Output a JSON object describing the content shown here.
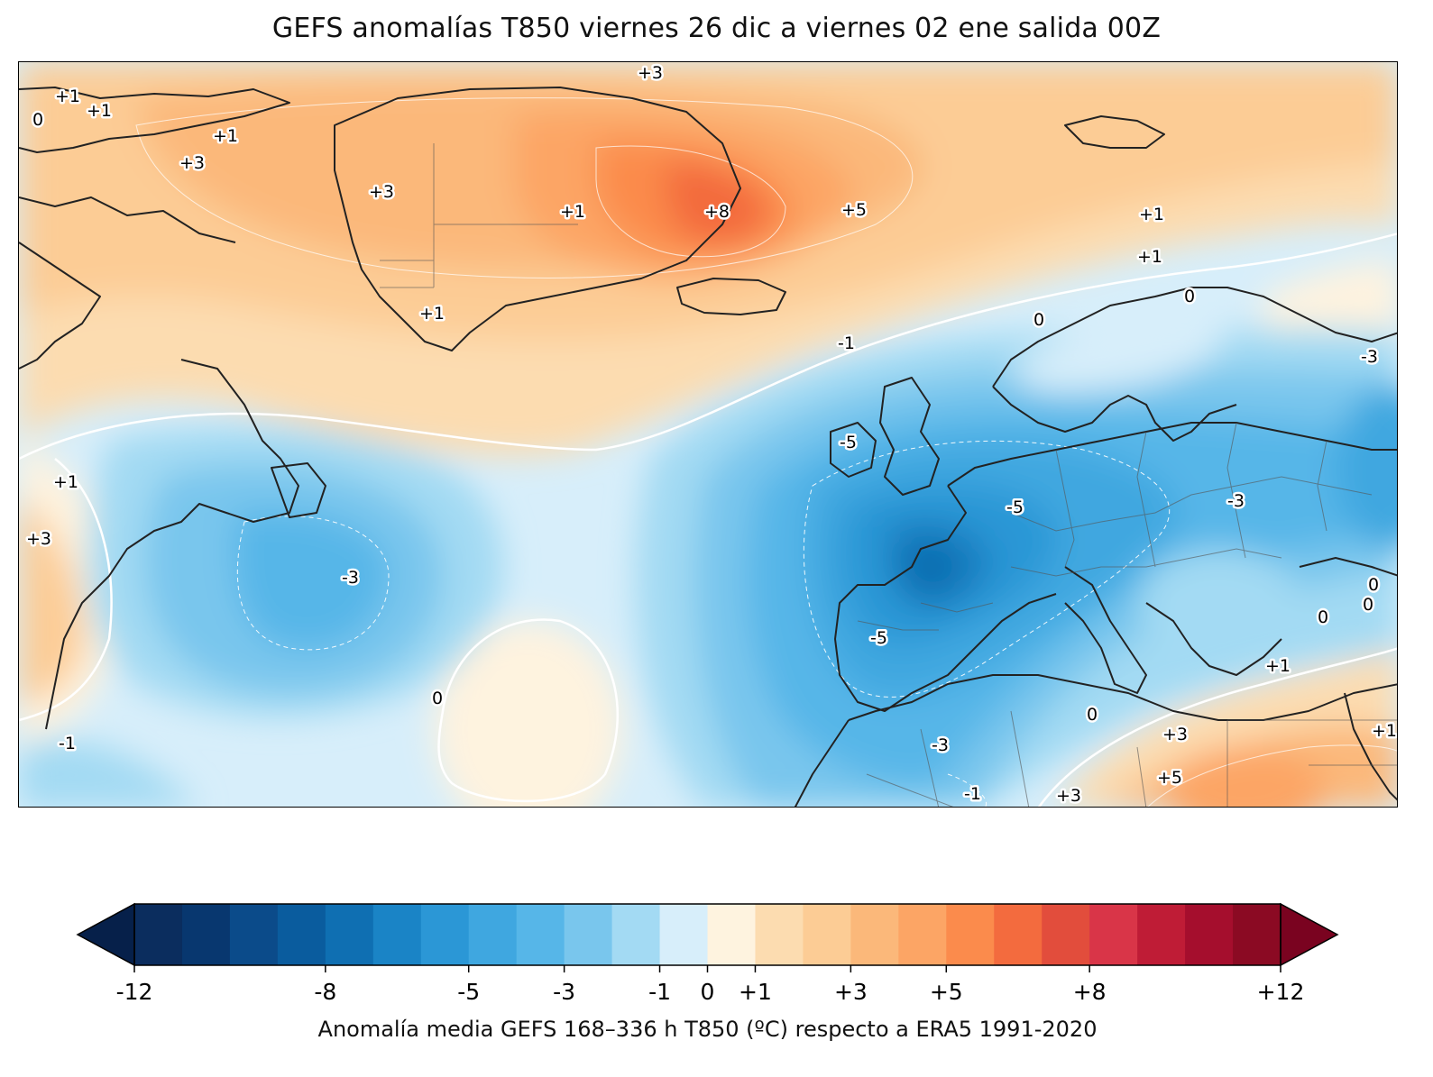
{
  "title": "GEFS anomalías T850 viernes 26 dic a viernes 02 ene salida 00Z",
  "colorbar": {
    "label": "Anomalía media GEFS 168–336 h T850 (ºC) respecto a ERA5 1991-2020",
    "tick_labels": [
      "-12",
      "-8",
      "-5",
      "-3",
      "-1",
      "0",
      "+1",
      "+3",
      "+5",
      "+8",
      "+12"
    ],
    "levels": [
      -12,
      -11,
      -10,
      -9,
      -8,
      -7,
      -6,
      -5,
      -4,
      -3,
      -2,
      -1,
      0,
      1,
      2,
      3,
      4,
      5,
      6,
      7,
      8,
      9,
      10,
      11,
      12
    ],
    "colors": [
      "#0b2d5e",
      "#08376f",
      "#0b4b8a",
      "#0a5c9e",
      "#0f6fb2",
      "#1a84c6",
      "#2b97d6",
      "#3fa7e0",
      "#56b6e8",
      "#79c6ed",
      "#a3daf3",
      "#d7eefa",
      "#fef3df",
      "#fcdcb0",
      "#fccc95",
      "#fbb87a",
      "#fca565",
      "#fb8b4c",
      "#f36b3e",
      "#e24d3c",
      "#d93548",
      "#bf1c36",
      "#a50e2d",
      "#8b0a23"
    ],
    "under_color": "#06204a",
    "over_color": "#7a0320"
  },
  "map": {
    "contour_labels": [
      "+3",
      "+1",
      "+1",
      "0",
      "+1",
      "+3",
      "+3",
      "+1",
      "+8",
      "+5",
      "+1",
      "+1",
      "+1",
      "0",
      "0",
      "-1",
      "-3",
      "-5",
      "-5",
      "-3",
      "-3",
      "+1",
      "+3",
      "-3",
      "0",
      "-5",
      "-1",
      "0",
      "0",
      "0",
      "0",
      "+1",
      "+3",
      "+5",
      "-1",
      "+3",
      "-3",
      "+1"
    ]
  }
}
